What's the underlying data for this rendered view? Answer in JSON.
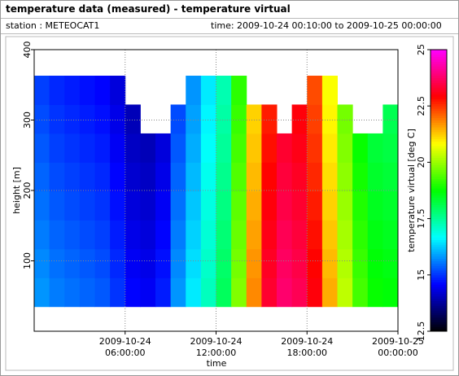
{
  "chart_data": {
    "type": "heatmap",
    "title": "temperature data (measured) - temperature virtual",
    "subtitle_left": "station : METEOCAT1",
    "subtitle_right": "time: 2009-10-24 00:10:00 to 2009-10-25 00:00:00",
    "xlabel": "time",
    "ylabel": "height [m]",
    "zlabel": "temperature virtual [deg C]",
    "x": [
      "2009-10-24 00:30:00",
      "2009-10-24 01:30:00",
      "2009-10-24 02:30:00",
      "2009-10-24 03:30:00",
      "2009-10-24 04:30:00",
      "2009-10-24 05:30:00",
      "2009-10-24 06:30:00",
      "2009-10-24 07:30:00",
      "2009-10-24 08:30:00",
      "2009-10-24 09:30:00",
      "2009-10-24 10:30:00",
      "2009-10-24 11:30:00",
      "2009-10-24 12:30:00",
      "2009-10-24 13:30:00",
      "2009-10-24 14:30:00",
      "2009-10-24 15:30:00",
      "2009-10-24 16:30:00",
      "2009-10-24 17:30:00",
      "2009-10-24 18:30:00",
      "2009-10-24 19:30:00",
      "2009-10-24 20:30:00",
      "2009-10-24 21:30:00",
      "2009-10-24 22:30:00",
      "2009-10-24 23:30:00"
    ],
    "y_edges": [
      35,
      76,
      117,
      158,
      199,
      240,
      281,
      322,
      363
    ],
    "z": [
      [
        15.8,
        15.6,
        15.5,
        15.4,
        15.3,
        15.0,
        14.6,
        14.5,
        14.8,
        15.8,
        16.5,
        17.2,
        18.0,
        19.8,
        21.8,
        23.3,
        23.8,
        23.6,
        23.0,
        21.5,
        20.3,
        19.3,
        18.8,
        18.7
      ],
      [
        15.7,
        15.5,
        15.4,
        15.3,
        15.2,
        14.9,
        14.5,
        14.4,
        14.7,
        15.7,
        16.4,
        17.1,
        17.9,
        19.7,
        21.7,
        23.2,
        23.7,
        23.5,
        22.9,
        21.4,
        20.2,
        19.2,
        18.7,
        18.6
      ],
      [
        15.6,
        15.4,
        15.3,
        15.2,
        15.1,
        14.8,
        14.4,
        14.3,
        14.6,
        15.6,
        16.3,
        17.0,
        17.8,
        19.6,
        21.6,
        23.1,
        23.6,
        23.4,
        22.8,
        21.3,
        20.1,
        19.1,
        18.6,
        18.5
      ],
      [
        15.5,
        15.3,
        15.2,
        15.1,
        15.0,
        14.7,
        14.3,
        14.2,
        14.5,
        15.5,
        16.2,
        16.9,
        17.7,
        19.5,
        21.5,
        23.0,
        23.5,
        23.3,
        22.7,
        21.2,
        20.0,
        19.0,
        18.5,
        18.4
      ],
      [
        15.4,
        15.2,
        15.1,
        15.0,
        14.9,
        14.6,
        14.2,
        14.1,
        14.4,
        15.4,
        16.1,
        16.8,
        17.6,
        19.4,
        21.4,
        22.9,
        23.4,
        23.2,
        22.6,
        21.1,
        19.9,
        18.9,
        18.4,
        18.3
      ],
      [
        15.3,
        15.1,
        15.0,
        14.9,
        14.8,
        14.5,
        14.1,
        14.0,
        14.3,
        15.3,
        16.0,
        16.7,
        17.5,
        19.3,
        21.3,
        22.8,
        23.3,
        23.1,
        22.5,
        21.0,
        19.8,
        18.8,
        18.3,
        18.2
      ],
      [
        15.2,
        15.0,
        14.9,
        14.8,
        14.7,
        14.4,
        14.0,
        null,
        null,
        15.2,
        15.9,
        16.6,
        17.4,
        19.2,
        21.2,
        22.7,
        null,
        23.0,
        22.4,
        20.9,
        19.7,
        null,
        null,
        18.1
      ],
      [
        15.1,
        14.9,
        14.8,
        14.7,
        14.6,
        14.3,
        null,
        null,
        null,
        null,
        15.8,
        16.5,
        17.3,
        19.1,
        null,
        null,
        null,
        null,
        22.3,
        20.8,
        null,
        null,
        null,
        null
      ]
    ],
    "xlim": [
      "2009-10-24 00:00:00",
      "2009-10-25 00:00:00"
    ],
    "xticks": [
      "2009-10-24 06:00:00",
      "2009-10-24 12:00:00",
      "2009-10-24 18:00:00",
      "2009-10-25 00:00:00"
    ],
    "ylim": [
      0,
      400
    ],
    "yticks": [
      100,
      200,
      300,
      400
    ],
    "zlim": [
      12.5,
      25
    ],
    "zticks": [
      12.5,
      15,
      17.5,
      20,
      22.5,
      25
    ],
    "colormap": [
      "#000000",
      "#0000ff",
      "#00ffff",
      "#00ff00",
      "#ffff00",
      "#ff0000",
      "#ff00ff"
    ],
    "grid": true
  }
}
